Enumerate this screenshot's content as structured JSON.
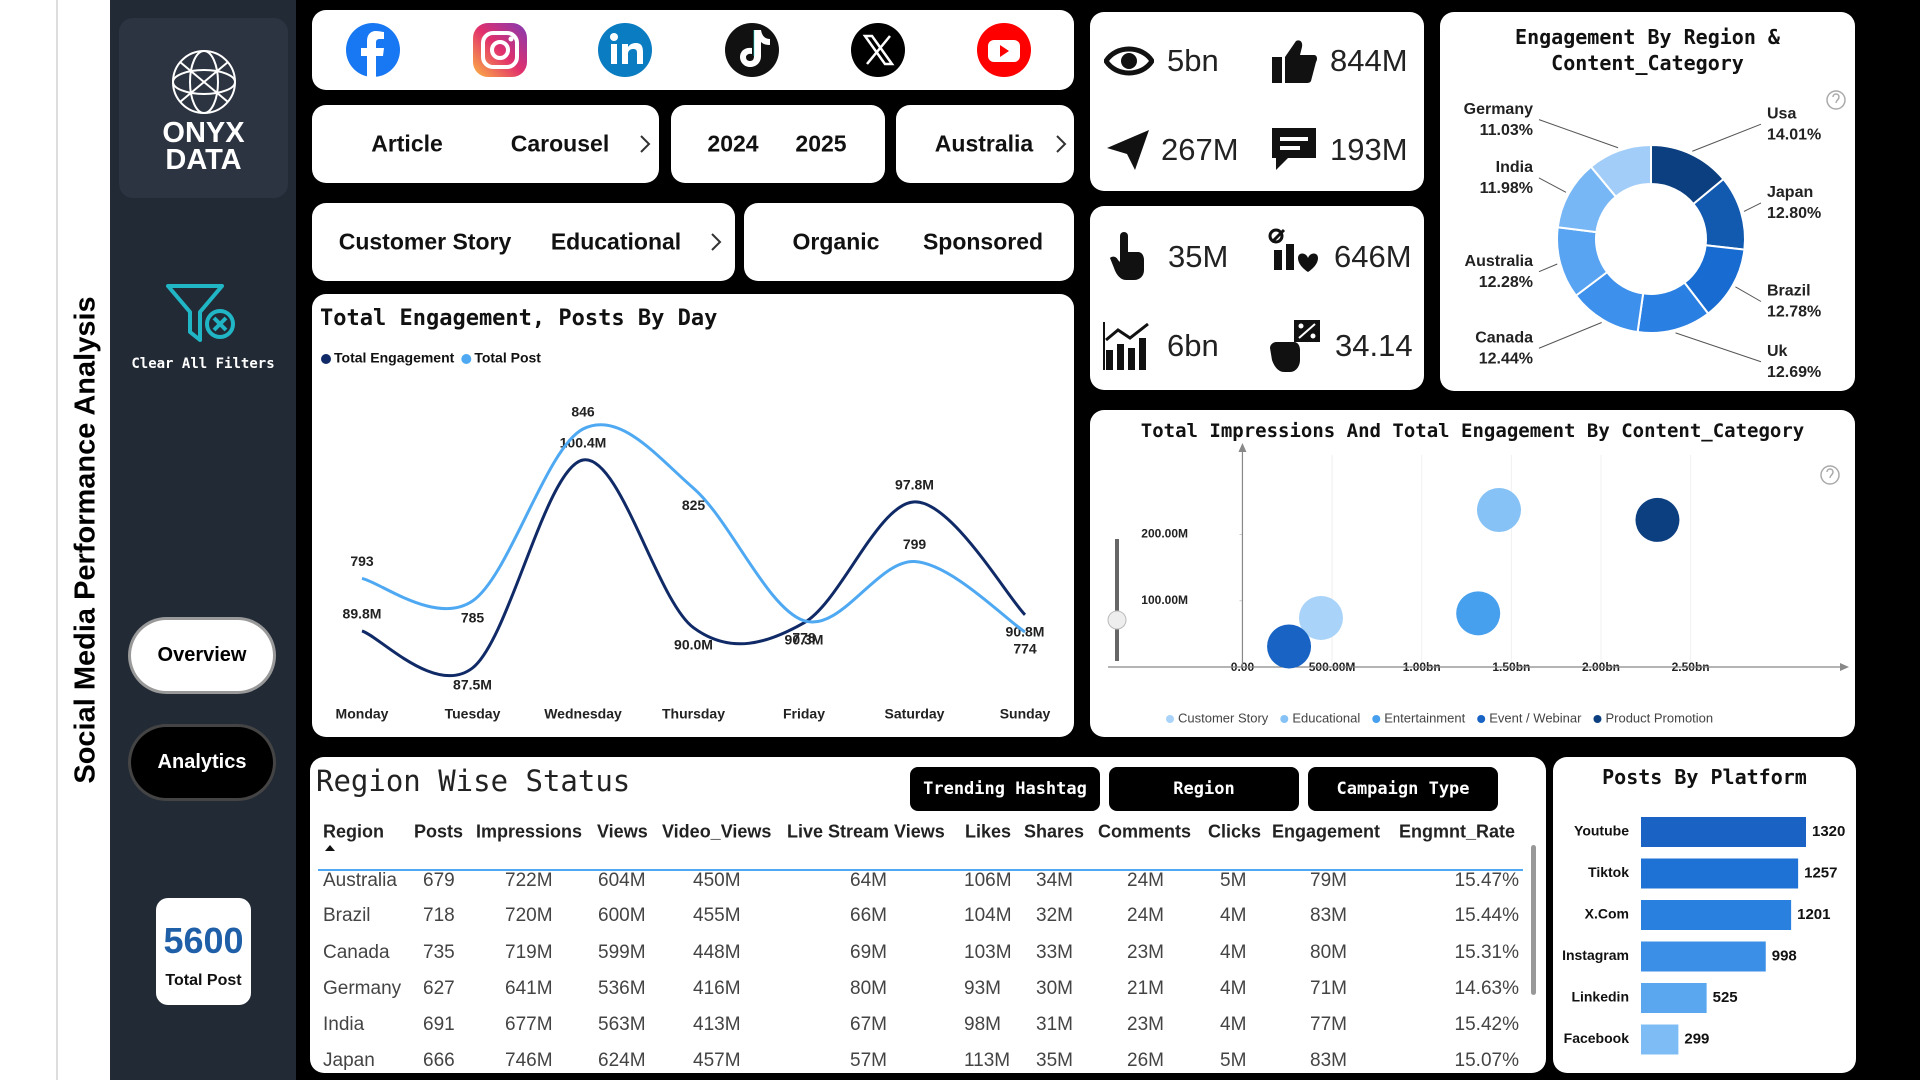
{
  "sidebar": {
    "title": "Social Media Performance Analysis",
    "logo": [
      "ONYX",
      "DATA"
    ],
    "clear_filters": "Clear All Filters",
    "nav": [
      "Overview",
      "Analytics"
    ],
    "total_post": {
      "value": "5600",
      "label": "Total Post"
    }
  },
  "filters": {
    "content_type": [
      "Article",
      "Carousel"
    ],
    "year": [
      "2024",
      "2025"
    ],
    "region": [
      "Australia"
    ],
    "content_category": [
      "Customer Story",
      "Educational"
    ],
    "post_type": [
      "Organic",
      "Sponsored"
    ]
  },
  "kpis": [
    "5bn",
    "844M",
    "267M",
    "193M",
    "35M",
    "646M",
    "6bn",
    "34.14"
  ],
  "table": {
    "title": "Region Wise Status",
    "buttons": [
      "Trending Hashtag",
      "Region",
      "Campaign Type"
    ],
    "columns": [
      "Region",
      "Posts",
      "Impressions",
      "Views",
      "Video_Views",
      "Live Stream Views",
      "Likes",
      "Shares",
      "Comments",
      "Clicks",
      "Engagement",
      "Engmnt_Rate"
    ],
    "rows": [
      [
        "Australia",
        "679",
        "722M",
        "604M",
        "450M",
        "64M",
        "106M",
        "34M",
        "24M",
        "5M",
        "79M",
        "15.47%"
      ],
      [
        "Brazil",
        "718",
        "720M",
        "600M",
        "455M",
        "66M",
        "104M",
        "32M",
        "24M",
        "4M",
        "83M",
        "15.44%"
      ],
      [
        "Canada",
        "735",
        "719M",
        "599M",
        "448M",
        "69M",
        "103M",
        "33M",
        "23M",
        "4M",
        "80M",
        "15.31%"
      ],
      [
        "Germany",
        "627",
        "641M",
        "536M",
        "416M",
        "80M",
        "93M",
        "30M",
        "21M",
        "4M",
        "71M",
        "14.63%"
      ],
      [
        "India",
        "691",
        "677M",
        "563M",
        "413M",
        "67M",
        "98M",
        "31M",
        "23M",
        "4M",
        "77M",
        "15.42%"
      ],
      [
        "Japan",
        "666",
        "746M",
        "624M",
        "457M",
        "57M",
        "113M",
        "35M",
        "26M",
        "5M",
        "83M",
        "15.07%"
      ]
    ]
  },
  "chart_data": [
    {
      "type": "line",
      "title": "Total Engagement, Posts By Day",
      "categories": [
        "Monday",
        "Tuesday",
        "Wednesday",
        "Thursday",
        "Friday",
        "Saturday",
        "Sunday"
      ],
      "series": [
        {
          "name": "Total Engagement",
          "color": "#0f2a66",
          "values": [
            89800000,
            87500000,
            100400000,
            90000000,
            90300000,
            97800000,
            90800000
          ],
          "value_labels": [
            "89.8M",
            "87.5M",
            "100.4M",
            "90.0M",
            "90.3M",
            "97.8M",
            "90.8M"
          ]
        },
        {
          "name": "Total Post",
          "color": "#4ea9f2",
          "axis": "y2",
          "values": [
            793,
            785,
            846,
            825,
            778,
            799,
            774
          ]
        }
      ]
    },
    {
      "type": "pie",
      "donut": true,
      "title": "Engagement By Region & Content_Category",
      "categories": [
        "Usa",
        "Japan",
        "Brazil",
        "Uk",
        "Canada",
        "Australia",
        "India",
        "Germany"
      ],
      "values": [
        14.01,
        12.8,
        12.78,
        12.69,
        12.44,
        12.28,
        11.98,
        11.03
      ],
      "value_labels": [
        "14.01%",
        "12.80%",
        "12.78%",
        "12.69%",
        "12.44%",
        "12.28%",
        "11.98%",
        "11.03%"
      ],
      "colors": [
        "#0b3f80",
        "#1259b0",
        "#186bd0",
        "#2a7fe2",
        "#3d90ec",
        "#58a4f2",
        "#78b7f5",
        "#a1cdf8"
      ]
    },
    {
      "type": "scatter",
      "title": "Total Impressions And Total Engagement By Content_Category",
      "xlim": [
        -750000000,
        3350000000
      ],
      "ylim": [
        0,
        320000000
      ],
      "xticks": [
        {
          "value": 0,
          "label": "0.00"
        },
        {
          "value": 500000000,
          "label": "500.00M"
        },
        {
          "value": 1000000000,
          "label": "1.00bn"
        },
        {
          "value": 1500000000,
          "label": "1.50bn"
        },
        {
          "value": 2000000000,
          "label": "2.00bn"
        },
        {
          "value": 2500000000,
          "label": "2.50bn"
        }
      ],
      "yticks": [
        {
          "value": 100000000,
          "label": "100.00M"
        },
        {
          "value": 200000000,
          "label": "200.00M"
        }
      ],
      "grid": true,
      "series": [
        {
          "name": "Customer Story",
          "color": "#a9d3f8",
          "x": [
            438000000
          ],
          "values": [
            74000000
          ]
        },
        {
          "name": "Educational",
          "color": "#86c2f5",
          "x": [
            1431000000
          ],
          "values": [
            237000000
          ]
        },
        {
          "name": "Entertainment",
          "color": "#47a0ee",
          "x": [
            1315000000
          ],
          "values": [
            81000000
          ]
        },
        {
          "name": "Event / Webinar",
          "color": "#1863c4",
          "x": [
            260000000
          ],
          "values": [
            31000000
          ]
        },
        {
          "name": "Product Promotion",
          "color": "#0c3f80",
          "x": [
            2315000000
          ],
          "values": [
            222000000
          ]
        }
      ]
    },
    {
      "type": "bar",
      "orientation": "horizontal",
      "title": "Posts By Platform",
      "categories": [
        "Youtube",
        "Tiktok",
        "X.Com",
        "Instagram",
        "Linkedin",
        "Facebook"
      ],
      "values": [
        1320,
        1257,
        1201,
        998,
        525,
        299
      ],
      "colors": [
        "#1a63c4",
        "#1f72d5",
        "#2a80de",
        "#3b8fe6",
        "#5aa7f0",
        "#7dbcf5"
      ]
    }
  ]
}
